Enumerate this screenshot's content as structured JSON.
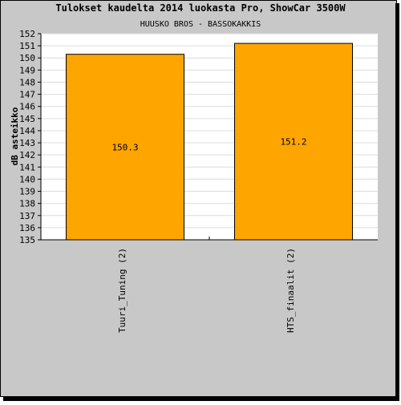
{
  "chart_data": {
    "type": "bar",
    "title": "Tulokset kaudelta 2014 luokasta Pro, ShowCar 3500W",
    "subtitle": "HUUSKO BROS - BASSOKAKKIS",
    "ylabel": "dB asteikko",
    "xlabel": "",
    "categories": [
      "Tuuri_Tuning (2)",
      "HTS_finaalit (2)"
    ],
    "values": [
      150.3,
      151.2
    ],
    "value_labels": [
      "150.3",
      "151.2"
    ],
    "ylim": [
      135,
      152
    ],
    "yticks": [
      "135",
      "136",
      "137",
      "138",
      "139",
      "140",
      "141",
      "142",
      "143",
      "144",
      "145",
      "146",
      "147",
      "148",
      "149",
      "150",
      "151",
      "152"
    ],
    "grid": true,
    "legend": "none"
  },
  "colors": {
    "background": "#c8c8c8",
    "plot_background": "#ffffff",
    "bar_fill": "#ffa500",
    "bar_stroke": "#000000",
    "grid": "#dcdcdc",
    "text": "#000000"
  }
}
